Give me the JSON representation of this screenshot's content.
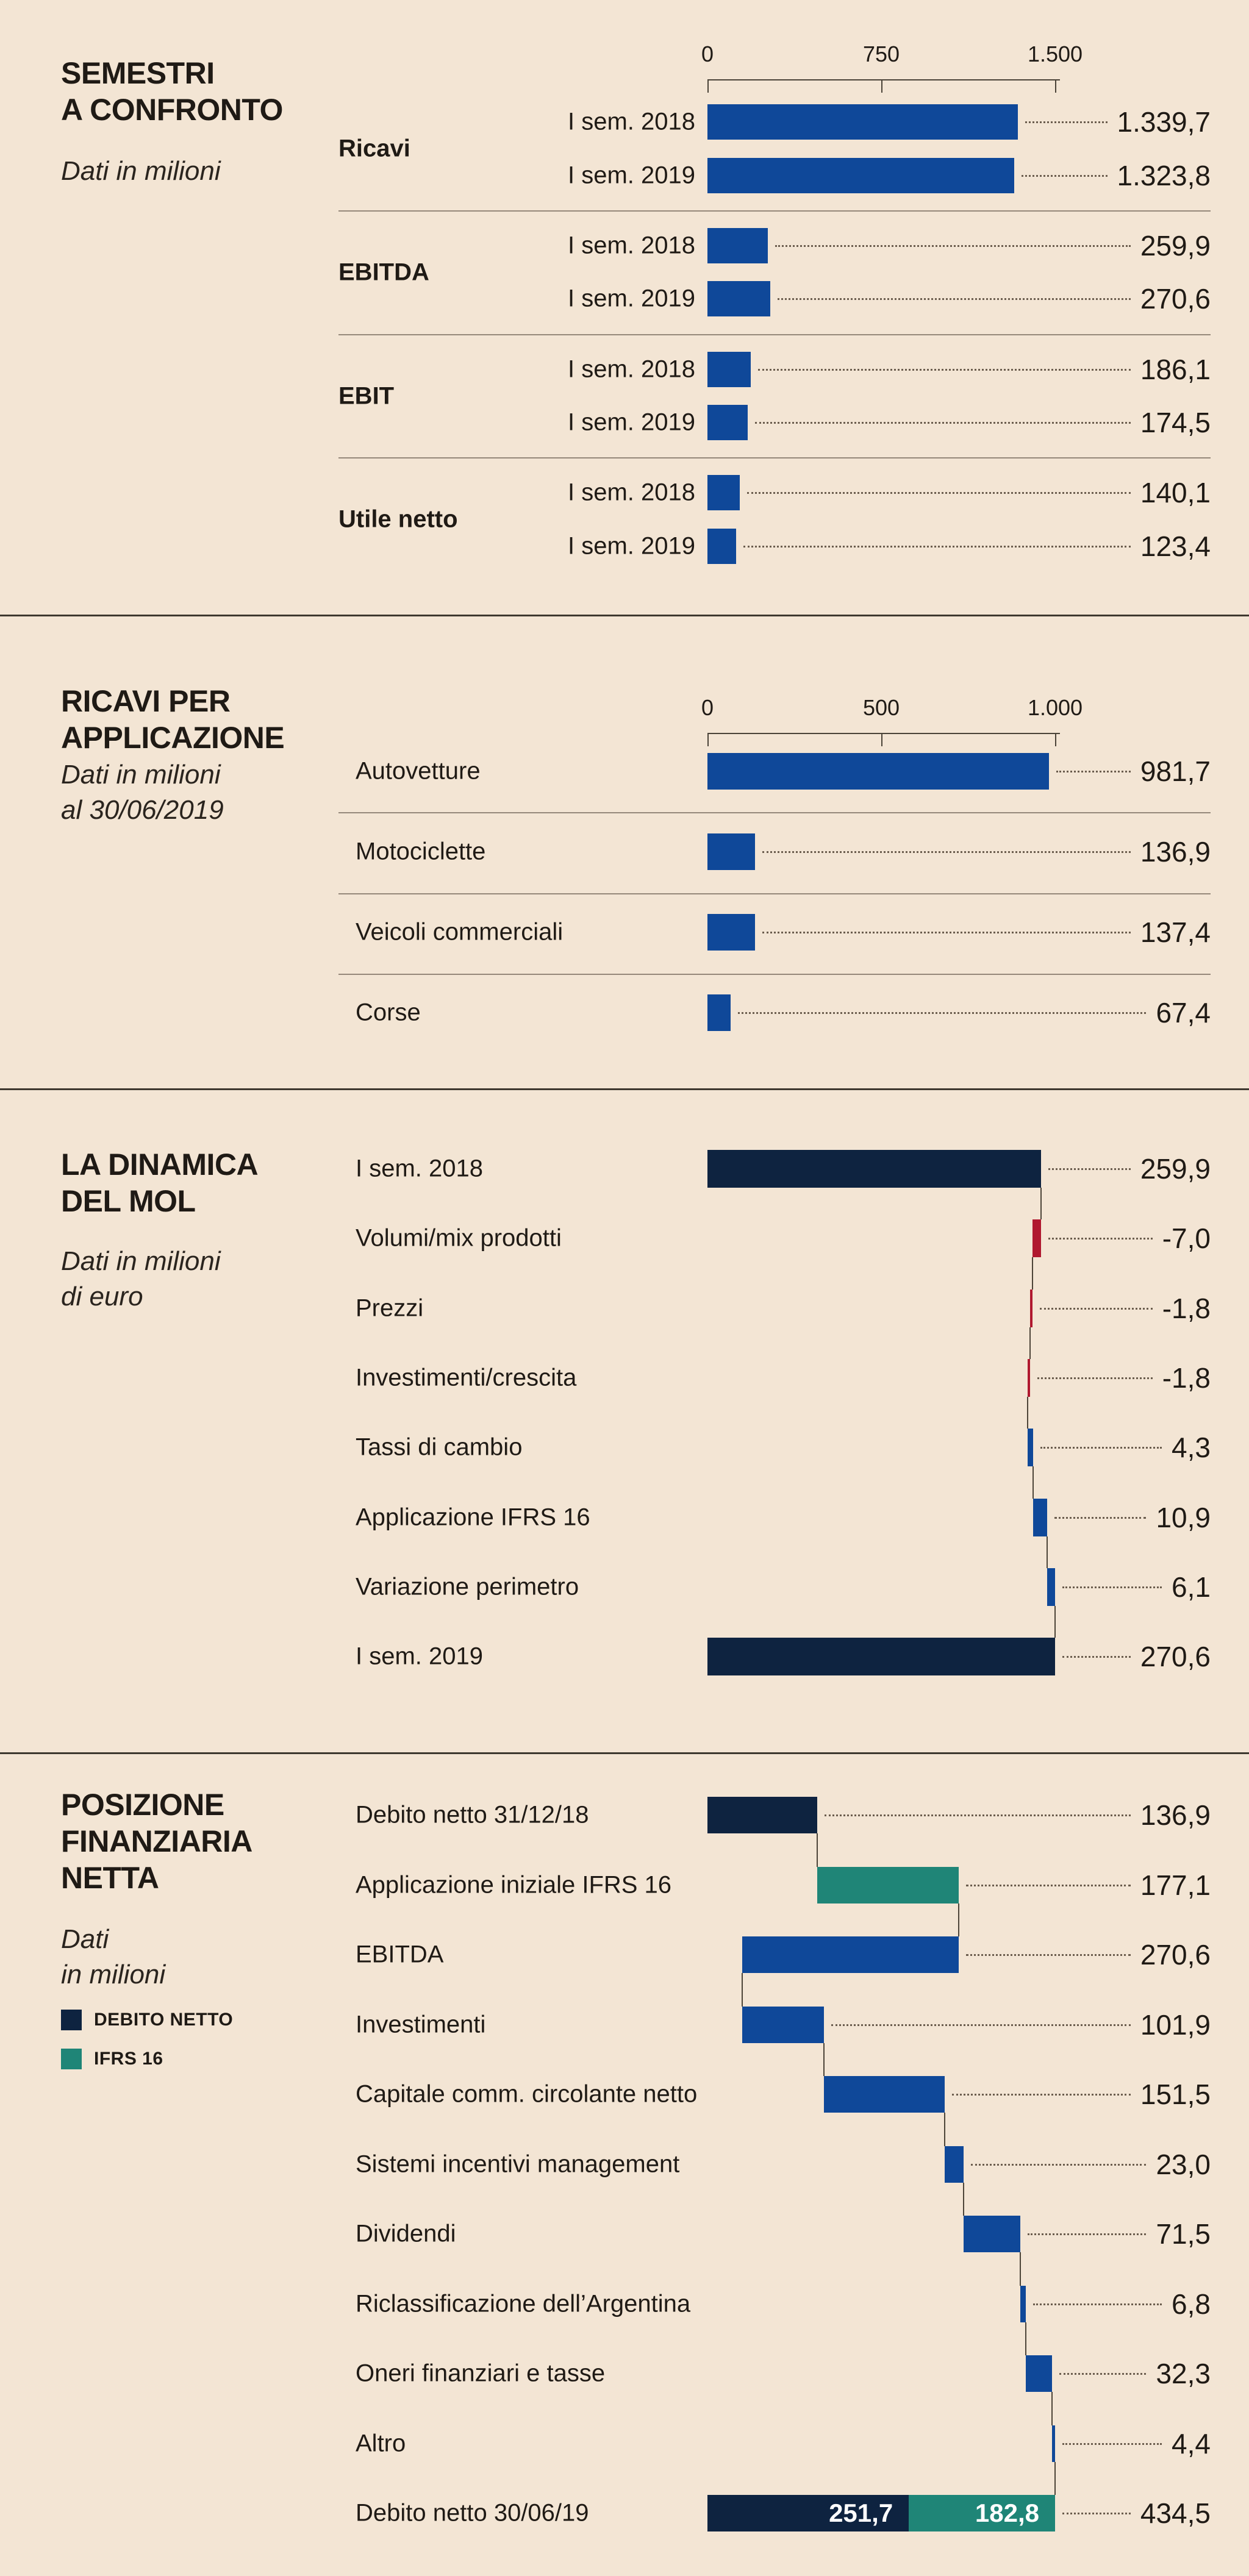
{
  "colors": {
    "background": "#f3e5d4",
    "blue": "#0f4899",
    "navy": "#0e2340",
    "red": "#b0182f",
    "teal": "#1f8577",
    "text": "#1f1a15",
    "separator": "#95887a",
    "divider": "#3e382f",
    "leader_dots": "#6b5d4e"
  },
  "chart_data": [
    {
      "type": "bar",
      "title": "SEMESTRI A CONFRONTO",
      "title_lines": [
        "SEMESTRI",
        "A CONFRONTO"
      ],
      "subtitle_lines": [
        "Dati in milioni"
      ],
      "legend_position": "none",
      "grid": false,
      "axis": {
        "max": 1500,
        "ticks": [
          {
            "label": "0",
            "value": 0
          },
          {
            "label": "750",
            "value": 750
          },
          {
            "label": "1.500",
            "value": 1500
          }
        ]
      },
      "groups": [
        {
          "label": "Ricavi",
          "bars": [
            {
              "label": "I sem. 2018",
              "value": 1339.7,
              "display": "1.339,7"
            },
            {
              "label": "I sem. 2019",
              "value": 1323.8,
              "display": "1.323,8"
            }
          ]
        },
        {
          "label": "EBITDA",
          "bars": [
            {
              "label": "I sem. 2018",
              "value": 259.9,
              "display": "259,9"
            },
            {
              "label": "I sem. 2019",
              "value": 270.6,
              "display": "270,6"
            }
          ]
        },
        {
          "label": "EBIT",
          "bars": [
            {
              "label": "I sem. 2018",
              "value": 186.1,
              "display": "186,1"
            },
            {
              "label": "I sem. 2019",
              "value": 174.5,
              "display": "174,5"
            }
          ]
        },
        {
          "label": "Utile netto",
          "bars": [
            {
              "label": "I sem. 2018",
              "value": 140.1,
              "display": "140,1"
            },
            {
              "label": "I sem. 2019",
              "value": 123.4,
              "display": "123,4"
            }
          ]
        }
      ]
    },
    {
      "type": "bar",
      "title": "RICAVI PER APPLICAZIONE",
      "title_lines": [
        "RICAVI PER",
        "APPLICAZIONE"
      ],
      "subtitle_lines": [
        "Dati in milioni",
        "al 30/06/2019"
      ],
      "grid": false,
      "axis": {
        "max": 1000,
        "ticks": [
          {
            "label": "0",
            "value": 0
          },
          {
            "label": "500",
            "value": 500
          },
          {
            "label": "1.000",
            "value": 1000
          }
        ]
      },
      "bars": [
        {
          "label": "Autovetture",
          "value": 981.7,
          "display": "981,7"
        },
        {
          "label": "Motociclette",
          "value": 136.9,
          "display": "136,9"
        },
        {
          "label": "Veicoli commerciali",
          "value": 137.4,
          "display": "137,4"
        },
        {
          "label": "Corse",
          "value": 67.4,
          "display": "67,4"
        }
      ]
    },
    {
      "type": "waterfall",
      "title": "LA DINAMICA DEL MOL",
      "title_lines": [
        "LA DINAMICA",
        "DEL MOL"
      ],
      "subtitle_lines": [
        "Dati in milioni",
        "di euro"
      ],
      "axis_max": 270.6,
      "rows": [
        {
          "label": "I sem. 2018",
          "value": 259.9,
          "display": "259,9",
          "role": "total",
          "color_key": "navy"
        },
        {
          "label": "Volumi/mix prodotti",
          "value": -7.0,
          "display": "-7,0",
          "role": "delta",
          "color_key": "red"
        },
        {
          "label": "Prezzi",
          "value": -1.8,
          "display": "-1,8",
          "role": "delta",
          "color_key": "red"
        },
        {
          "label": "Investimenti/crescita",
          "value": -1.8,
          "display": "-1,8",
          "role": "delta",
          "color_key": "red"
        },
        {
          "label": "Tassi di cambio",
          "value": 4.3,
          "display": "4,3",
          "role": "delta",
          "color_key": "blue"
        },
        {
          "label": "Applicazione IFRS 16",
          "value": 10.9,
          "display": "10,9",
          "role": "delta",
          "color_key": "blue"
        },
        {
          "label": "Variazione perimetro",
          "value": 6.1,
          "display": "6,1",
          "role": "delta",
          "color_key": "blue"
        },
        {
          "label": "I sem. 2019",
          "value": 270.6,
          "display": "270,6",
          "role": "total",
          "color_key": "navy"
        }
      ]
    },
    {
      "type": "waterfall",
      "title": "POSIZIONE FINANZIARIA NETTA",
      "title_lines": [
        "POSIZIONE",
        "FINANZIARIA",
        "NETTA"
      ],
      "subtitle_lines": [
        "Dati",
        "in milioni"
      ],
      "legend": [
        {
          "label": "DEBITO NETTO",
          "color_key": "navy"
        },
        {
          "label": "IFRS 16",
          "color_key": "teal"
        }
      ],
      "axis_max": 434.5,
      "rows": [
        {
          "label": "Debito netto 31/12/18",
          "value": 136.9,
          "display": "136,9",
          "role": "total",
          "color_key": "navy"
        },
        {
          "label": "Applicazione iniziale IFRS 16",
          "value": 177.1,
          "display": "177,1",
          "role": "delta",
          "color_key": "teal"
        },
        {
          "label": "EBITDA",
          "value": -270.6,
          "display": "270,6",
          "role": "delta",
          "color_key": "blue"
        },
        {
          "label": "Investimenti",
          "value": 101.9,
          "display": "101,9",
          "role": "delta",
          "color_key": "blue"
        },
        {
          "label": "Capitale comm. circolante netto",
          "value": 151.5,
          "display": "151,5",
          "role": "delta",
          "color_key": "blue"
        },
        {
          "label": "Sistemi incentivi management",
          "value": 23.0,
          "display": "23,0",
          "role": "delta",
          "color_key": "blue"
        },
        {
          "label": "Dividendi",
          "value": 71.5,
          "display": "71,5",
          "role": "delta",
          "color_key": "blue"
        },
        {
          "label": "Riclassificazione dell’Argentina",
          "value": 6.8,
          "display": "6,8",
          "role": "delta",
          "color_key": "blue"
        },
        {
          "label": "Oneri finanziari e tasse",
          "value": 32.3,
          "display": "32,3",
          "role": "delta",
          "color_key": "blue"
        },
        {
          "label": "Altro",
          "value": 4.4,
          "display": "4,4",
          "role": "delta",
          "color_key": "blue"
        },
        {
          "label": "Debito netto 30/06/19",
          "display": "434,5",
          "role": "stacked_total",
          "segments": [
            {
              "value": 251.7,
              "display": "251,7",
              "color_key": "navy"
            },
            {
              "value": 182.8,
              "display": "182,8",
              "color_key": "teal"
            }
          ]
        }
      ]
    }
  ]
}
